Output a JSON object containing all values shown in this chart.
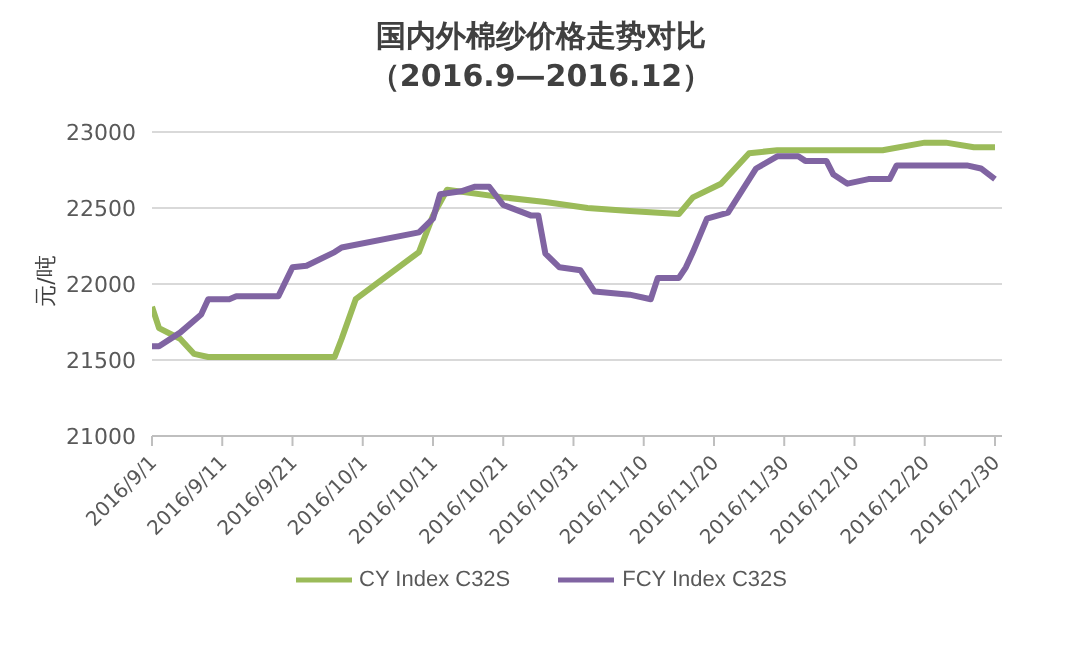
{
  "chart_data": {
    "type": "line",
    "title": "国内外棉纱价格走势对比",
    "subtitle": "（2016.9—2016.12）",
    "ylabel": "元/吨",
    "xlim": [
      "2016-09-01",
      "2016-12-31"
    ],
    "xticks": [
      {
        "value": "2016-09-01",
        "label": "2016/9/1"
      },
      {
        "value": "2016-09-11",
        "label": "2016/9/11"
      },
      {
        "value": "2016-09-21",
        "label": "2016/9/21"
      },
      {
        "value": "2016-10-01",
        "label": "2016/10/1"
      },
      {
        "value": "2016-10-11",
        "label": "2016/10/11"
      },
      {
        "value": "2016-10-21",
        "label": "2016/10/21"
      },
      {
        "value": "2016-10-31",
        "label": "2016/10/31"
      },
      {
        "value": "2016-11-10",
        "label": "2016/11/10"
      },
      {
        "value": "2016-11-20",
        "label": "2016/11/20"
      },
      {
        "value": "2016-11-30",
        "label": "2016/11/30"
      },
      {
        "value": "2016-12-10",
        "label": "2016/12/10"
      },
      {
        "value": "2016-12-20",
        "label": "2016/12/20"
      },
      {
        "value": "2016-12-30",
        "label": "2016/12/30"
      }
    ],
    "ylim": [
      21000,
      23000
    ],
    "yticks": [
      21000,
      21500,
      22000,
      22500,
      23000
    ],
    "grid": "y",
    "legend": "bottom",
    "marker": "none",
    "line_style": "solid",
    "series": [
      {
        "name": "CY Index C32S",
        "color": "#9bbb59",
        "x": [
          "2016-09-01",
          "2016-09-02",
          "2016-09-05",
          "2016-09-07",
          "2016-09-09",
          "2016-09-27",
          "2016-09-28",
          "2016-09-30",
          "2016-10-09",
          "2016-10-11",
          "2016-10-13",
          "2016-10-21",
          "2016-10-27",
          "2016-11-02",
          "2016-11-08",
          "2016-11-15",
          "2016-11-17",
          "2016-11-21",
          "2016-11-25",
          "2016-11-29",
          "2016-12-14",
          "2016-12-20",
          "2016-12-23",
          "2016-12-27",
          "2016-12-30"
        ],
        "values": [
          21850,
          21710,
          21640,
          21540,
          21520,
          21520,
          21640,
          21900,
          22210,
          22450,
          22620,
          22570,
          22540,
          22500,
          22480,
          22460,
          22570,
          22660,
          22860,
          22880,
          22880,
          22930,
          22930,
          22900,
          22900
        ]
      },
      {
        "name": "FCY Index C32S",
        "color": "#8064a2",
        "x": [
          "2016-09-01",
          "2016-09-02",
          "2016-09-05",
          "2016-09-08",
          "2016-09-09",
          "2016-09-12",
          "2016-09-13",
          "2016-09-19",
          "2016-09-21",
          "2016-09-23",
          "2016-09-27",
          "2016-09-28",
          "2016-10-09",
          "2016-10-11",
          "2016-10-12",
          "2016-10-15",
          "2016-10-17",
          "2016-10-19",
          "2016-10-21",
          "2016-10-25",
          "2016-10-26",
          "2016-10-27",
          "2016-10-29",
          "2016-11-01",
          "2016-11-03",
          "2016-11-08",
          "2016-11-11",
          "2016-11-12",
          "2016-11-15",
          "2016-11-16",
          "2016-11-17",
          "2016-11-19",
          "2016-11-22",
          "2016-11-26",
          "2016-11-29",
          "2016-12-02",
          "2016-12-03",
          "2016-12-06",
          "2016-12-07",
          "2016-12-09",
          "2016-12-12",
          "2016-12-15",
          "2016-12-16",
          "2016-12-26",
          "2016-12-28",
          "2016-12-30"
        ],
        "values": [
          21590,
          21590,
          21680,
          21800,
          21900,
          21900,
          21920,
          21920,
          22110,
          22120,
          22210,
          22240,
          22340,
          22430,
          22590,
          22610,
          22640,
          22640,
          22520,
          22450,
          22450,
          22200,
          22110,
          22090,
          21950,
          21930,
          21900,
          22040,
          22040,
          22110,
          22210,
          22430,
          22470,
          22760,
          22840,
          22840,
          22810,
          22810,
          22720,
          22660,
          22690,
          22690,
          22780,
          22780,
          22760,
          22690
        ]
      }
    ]
  }
}
